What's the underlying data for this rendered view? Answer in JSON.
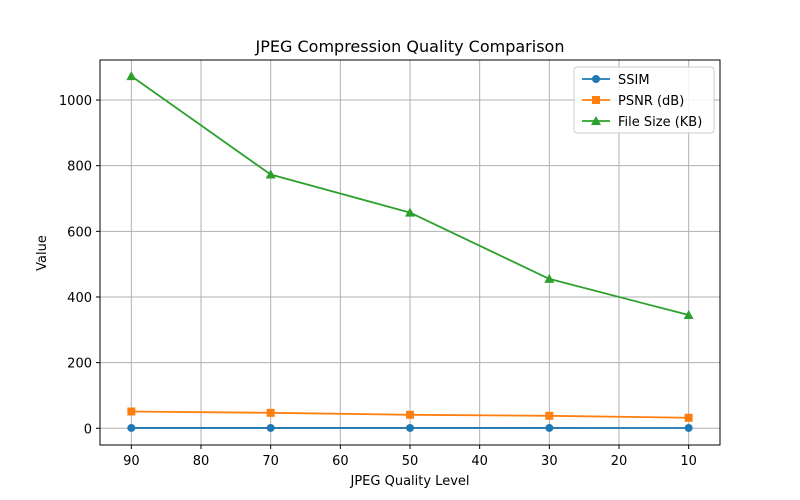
{
  "chart_data": {
    "type": "line",
    "title": "JPEG Compression Quality Comparison",
    "xlabel": "JPEG Quality Level",
    "ylabel": "Value",
    "x": [
      90,
      70,
      50,
      30,
      10
    ],
    "x_ticks": [
      90,
      80,
      70,
      60,
      50,
      40,
      30,
      20,
      10
    ],
    "xlim": [
      94.5,
      5.5
    ],
    "x_inverted": true,
    "y_ticks": [
      0,
      200,
      400,
      600,
      800,
      1000
    ],
    "ylim": [
      -51,
      1122
    ],
    "grid": true,
    "legend_position": "top-right",
    "series": [
      {
        "name": "SSIM",
        "color": "#1f77b4",
        "marker": "circle",
        "values": [
          0.98,
          0.96,
          0.94,
          0.91,
          0.85
        ]
      },
      {
        "name": "PSNR (dB)",
        "color": "#ff7f0e",
        "marker": "square",
        "values": [
          51,
          47,
          41,
          38,
          32
        ]
      },
      {
        "name": "File Size (KB)",
        "color": "#2ca02c",
        "marker": "triangle",
        "values": [
          1073,
          773,
          657,
          455,
          345
        ]
      }
    ]
  }
}
